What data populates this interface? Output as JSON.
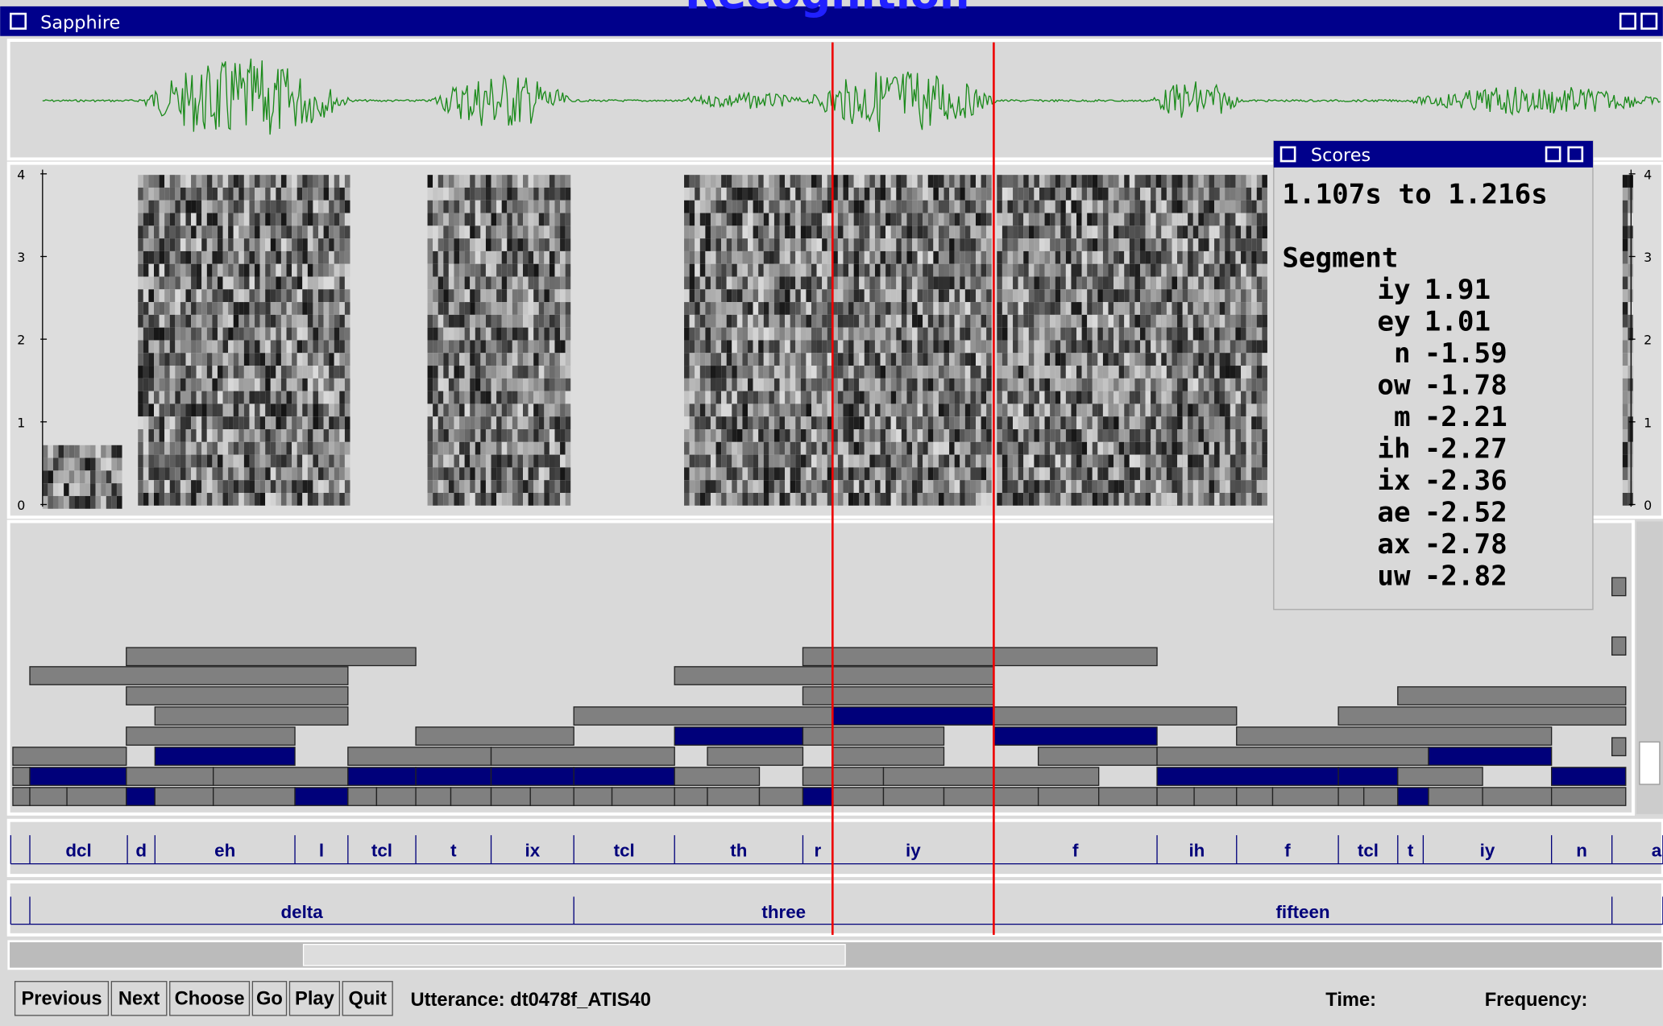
{
  "header": {
    "banner": "Recognition",
    "window_title": "Sapphire"
  },
  "spectrogram": {
    "axis_labels": [
      "0",
      "1",
      "2",
      "3",
      "4"
    ]
  },
  "scores": {
    "title": "Scores",
    "range": "1.107s to 1.216s",
    "heading": "Segment",
    "rows": [
      {
        "label": "iy",
        "score": 1.91
      },
      {
        "label": "ey",
        "score": 1.01
      },
      {
        "label": "n",
        "score": -1.59
      },
      {
        "label": "ow",
        "score": -1.78
      },
      {
        "label": "m",
        "score": -2.21
      },
      {
        "label": "ih",
        "score": -2.27
      },
      {
        "label": "ix",
        "score": -2.36
      },
      {
        "label": "ae",
        "score": -2.52
      },
      {
        "label": "ax",
        "score": -2.78
      },
      {
        "label": "uw",
        "score": -2.82
      }
    ]
  },
  "phones": [
    "dcl",
    "d",
    "eh",
    "l",
    "tcl",
    "t",
    "ix",
    "tcl",
    "th",
    "r",
    "iy",
    "f",
    "ih",
    "f",
    "tcl",
    "t",
    "iy",
    "n",
    "a"
  ],
  "words": [
    "delta",
    "three",
    "fifteen"
  ],
  "buttons": [
    "Previous",
    "Next",
    "Choose",
    "Go",
    "Play",
    "Quit"
  ],
  "status": {
    "utterance": "Utterance:  dt0478f_ATIS40",
    "time": "Time:",
    "frequency": "Frequency:"
  }
}
